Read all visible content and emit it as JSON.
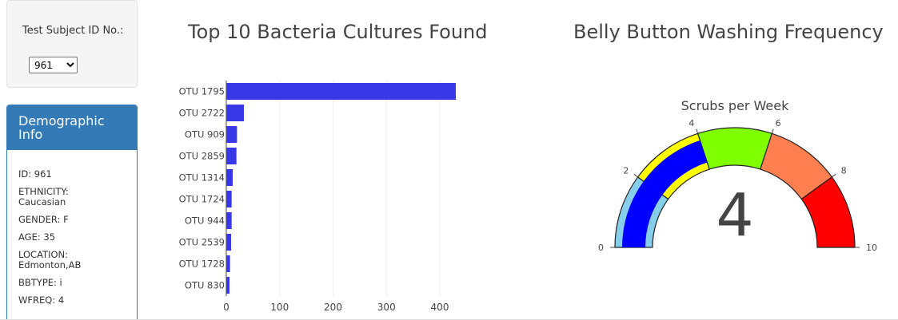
{
  "sidebar": {
    "selector_label": "Test Subject ID No.:",
    "selected_id": "961",
    "panel_title": "Demographic Info",
    "info": [
      "ID: 961",
      "ETHNICITY: Caucasian",
      "GENDER: F",
      "AGE: 35",
      "LOCATION: Edmonton,AB",
      "BBTYPE: i",
      "WFREQ: 4"
    ]
  },
  "bar_title": "Top 10 Bacteria Cultures Found",
  "gauge_title": "Belly Button Washing Frequency",
  "chart_data": [
    {
      "type": "bar",
      "orientation": "horizontal",
      "title": "Top 10 Bacteria Cultures Found",
      "categories": [
        "OTU 1795",
        "OTU 2722",
        "OTU 909",
        "OTU 2859",
        "OTU 1314",
        "OTU 1724",
        "OTU 944",
        "OTU 2539",
        "OTU 1728",
        "OTU 830"
      ],
      "values": [
        430,
        33,
        20,
        19,
        12,
        10,
        10,
        9,
        7,
        6
      ],
      "xticks": [
        "0",
        "100",
        "200",
        "300",
        "400"
      ],
      "xlim": [
        0,
        460
      ],
      "grid": true,
      "color": "#3838e8"
    },
    {
      "type": "gauge",
      "title": "Scrubs per Week",
      "value": 4,
      "value_label": "4",
      "range": [
        0,
        10
      ],
      "ticks": [
        "0",
        "2",
        "4",
        "6",
        "8",
        "10"
      ],
      "steps": [
        {
          "range": [
            0,
            2
          ],
          "color": "#87ceeb"
        },
        {
          "range": [
            2,
            4
          ],
          "color": "#ffff00"
        },
        {
          "range": [
            4,
            6
          ],
          "color": "#7fff00"
        },
        {
          "range": [
            6,
            8
          ],
          "color": "#ff7f50"
        },
        {
          "range": [
            8,
            10
          ],
          "color": "#ff0000"
        }
      ],
      "bar_color": "#0000ff"
    }
  ]
}
